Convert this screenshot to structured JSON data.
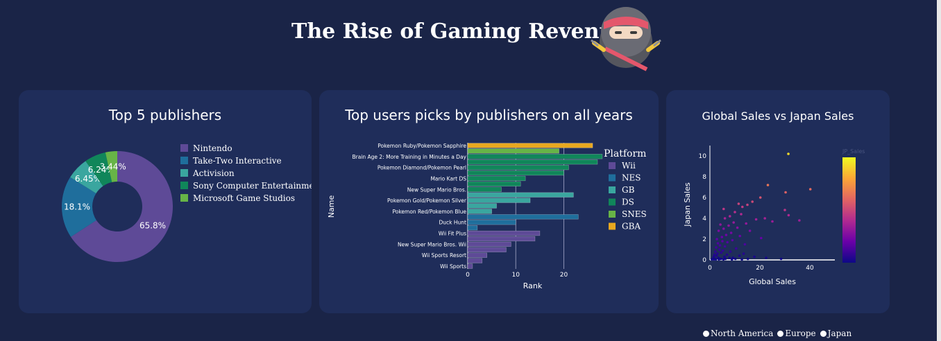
{
  "header": {
    "title": "The Rise of Gaming Revenue"
  },
  "controls": {
    "options": [
      "North America",
      "Europe",
      "Japan"
    ]
  },
  "chart_data": [
    {
      "type": "pie",
      "title": "Top 5 publishers",
      "hole": 0.45,
      "labels": [
        "Nintendo",
        "Take-Two Interactive",
        "Activision",
        "Sony Computer Entertainment",
        "Microsoft Game Studios"
      ],
      "values": [
        65.8,
        18.1,
        6.45,
        6.24,
        3.44
      ],
      "value_labels": [
        "65.8%",
        "18.1%",
        "6.45%",
        "6.24%",
        "3.44%"
      ],
      "colors": [
        "#5e4a97",
        "#1f6e9c",
        "#3aa69f",
        "#10865a",
        "#67b447"
      ],
      "legend": "right"
    },
    {
      "type": "bar",
      "title": "Top users picks by publishers on all years",
      "orientation": "horizontal",
      "xlabel": "Rank",
      "ylabel": "Name",
      "xlim": [
        0,
        27
      ],
      "xticks": [
        0,
        10,
        20
      ],
      "legend_title": "Platform",
      "legend": "right",
      "platforms": [
        {
          "name": "Wii",
          "color": "#5e4a97"
        },
        {
          "name": "NES",
          "color": "#1f6e9c"
        },
        {
          "name": "GB",
          "color": "#3aa69f"
        },
        {
          "name": "DS",
          "color": "#10865a"
        },
        {
          "name": "SNES",
          "color": "#67b447"
        },
        {
          "name": "GBA",
          "color": "#e8a820"
        }
      ],
      "ytick_labels": [
        "Pokemon Ruby/Pokemon Sapphire",
        "Brain Age 2: More Training in Minutes a Day",
        "Pokemon Diamond/Pokemon Pearl",
        "Mario Kart DS",
        "New Super Mario Bros.",
        "Pokemon Gold/Pokemon Silver",
        "Pokemon Red/Pokemon Blue",
        "Duck Hunt",
        "Wii Fit Plus",
        "New Super Mario Bros. Wii",
        "Wii Sports Resort",
        "Wii Sports"
      ],
      "bars": [
        {
          "label": "Pokemon Ruby/Pokemon Sapphire",
          "platform": "GBA",
          "value": 26
        },
        {
          "label": "",
          "platform": "SNES",
          "value": 19
        },
        {
          "label": "Brain Age 2: More Training in Minutes a Day",
          "platform": "DS",
          "value": 28
        },
        {
          "label": "",
          "platform": "DS",
          "value": 27
        },
        {
          "label": "Pokemon Diamond/Pokemon Pearl",
          "platform": "DS",
          "value": 21
        },
        {
          "label": "",
          "platform": "DS",
          "value": 20
        },
        {
          "label": "Mario Kart DS",
          "platform": "DS",
          "value": 12
        },
        {
          "label": "",
          "platform": "DS",
          "value": 11
        },
        {
          "label": "New Super Mario Bros.",
          "platform": "DS",
          "value": 7
        },
        {
          "label": "",
          "platform": "GB",
          "value": 22
        },
        {
          "label": "Pokemon Gold/Pokemon Silver",
          "platform": "GB",
          "value": 13
        },
        {
          "label": "",
          "platform": "GB",
          "value": 6
        },
        {
          "label": "Pokemon Red/Pokemon Blue",
          "platform": "GB",
          "value": 5
        },
        {
          "label": "",
          "platform": "NES",
          "value": 23
        },
        {
          "label": "Duck Hunt",
          "platform": "NES",
          "value": 10
        },
        {
          "label": "",
          "platform": "NES",
          "value": 2
        },
        {
          "label": "Wii Fit Plus",
          "platform": "Wii",
          "value": 15
        },
        {
          "label": "",
          "platform": "Wii",
          "value": 14
        },
        {
          "label": "New Super Mario Bros. Wii",
          "platform": "Wii",
          "value": 9
        },
        {
          "label": "",
          "platform": "Wii",
          "value": 8
        },
        {
          "label": "Wii Sports Resort",
          "platform": "Wii",
          "value": 4
        },
        {
          "label": "",
          "platform": "Wii",
          "value": 3
        },
        {
          "label": "Wii Sports",
          "platform": "Wii",
          "value": 1
        }
      ]
    },
    {
      "type": "scatter",
      "title": "Global Sales vs Japan Sales",
      "xlabel": "Global Sales",
      "ylabel": "Japan Sales",
      "xlim": [
        0,
        50
      ],
      "ylim": [
        0,
        11
      ],
      "xticks": [
        0,
        20,
        40
      ],
      "yticks": [
        0,
        2,
        4,
        6,
        8,
        10
      ],
      "colorbar_title": "JP_Sales",
      "colorscale": "plasma",
      "points": [
        [
          31.4,
          10.2
        ],
        [
          23.2,
          7.2
        ],
        [
          30.3,
          6.5
        ],
        [
          40.2,
          6.8
        ],
        [
          20.2,
          6.0
        ],
        [
          17.0,
          5.6
        ],
        [
          15.0,
          5.3
        ],
        [
          13.0,
          5.1
        ],
        [
          11.5,
          5.4
        ],
        [
          5.5,
          4.9
        ],
        [
          30.0,
          4.8
        ],
        [
          10.0,
          4.6
        ],
        [
          12.5,
          4.4
        ],
        [
          35.8,
          3.8
        ],
        [
          31.5,
          4.3
        ],
        [
          8.0,
          4.2
        ],
        [
          6.0,
          4.0
        ],
        [
          22.0,
          4.0
        ],
        [
          18.5,
          3.9
        ],
        [
          25.0,
          3.7
        ],
        [
          9.5,
          3.6
        ],
        [
          14.5,
          3.5
        ],
        [
          4.2,
          3.4
        ],
        [
          7.5,
          3.3
        ],
        [
          11.0,
          3.1
        ],
        [
          5.5,
          3.0
        ],
        [
          16.0,
          2.8
        ],
        [
          3.5,
          2.8
        ],
        [
          8.5,
          2.6
        ],
        [
          6.5,
          2.4
        ],
        [
          12.0,
          2.3
        ],
        [
          4.8,
          2.2
        ],
        [
          20.5,
          2.1
        ],
        [
          2.8,
          2.0
        ],
        [
          9.0,
          1.9
        ],
        [
          5.0,
          1.8
        ],
        [
          7.0,
          1.7
        ],
        [
          3.2,
          1.6
        ],
        [
          14.0,
          1.5
        ],
        [
          4.0,
          1.4
        ],
        [
          6.0,
          1.3
        ],
        [
          2.5,
          1.2
        ],
        [
          10.5,
          1.1
        ],
        [
          3.8,
          1.0
        ],
        [
          5.2,
          0.9
        ],
        [
          8.2,
          0.8
        ],
        [
          2.2,
          0.8
        ],
        [
          4.5,
          0.7
        ],
        [
          13.5,
          0.6
        ],
        [
          3.0,
          0.6
        ],
        [
          6.8,
          0.5
        ],
        [
          1.8,
          0.5
        ],
        [
          11.8,
          0.4
        ],
        [
          2.6,
          0.4
        ],
        [
          5.8,
          0.3
        ],
        [
          17.8,
          0.3
        ],
        [
          1.5,
          0.3
        ],
        [
          9.2,
          0.2
        ],
        [
          3.4,
          0.2
        ],
        [
          7.8,
          0.2
        ],
        [
          22.5,
          0.2
        ],
        [
          1.2,
          0.1
        ],
        [
          4.4,
          0.1
        ],
        [
          15.2,
          0.1
        ],
        [
          28.5,
          0.1
        ],
        [
          2.0,
          0.1
        ],
        [
          6.2,
          0.1
        ],
        [
          10.2,
          0.1
        ],
        [
          0.8,
          0.05
        ],
        [
          1.6,
          0.05
        ],
        [
          2.4,
          0.05
        ],
        [
          3.6,
          0.05
        ],
        [
          5.4,
          0.05
        ],
        [
          8.8,
          0.05
        ],
        [
          12.8,
          0.05
        ]
      ]
    }
  ]
}
